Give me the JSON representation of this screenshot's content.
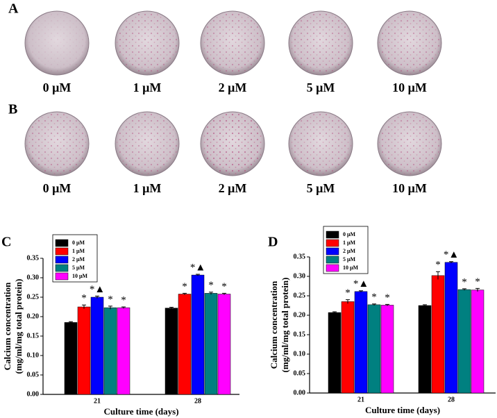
{
  "panels": [
    {
      "label": "A",
      "wells": [
        "0 μM",
        "1 μM",
        "2 μM",
        "5 μM",
        "10 μM"
      ]
    },
    {
      "label": "B",
      "wells": [
        "0 μM",
        "1 μM",
        "2 μM",
        "5 μM",
        "10 μM"
      ]
    }
  ],
  "chart_data": [
    {
      "type": "bar",
      "panel_label": "C",
      "xlabel": "Culture time (days)",
      "ylabel": [
        "Calcium concentration",
        "(mg/ml/mg total protein)"
      ],
      "categories": [
        "21",
        "28"
      ],
      "ylim": [
        0,
        0.35
      ],
      "yticks": [
        {
          "value": 0,
          "label": "0.00"
        },
        0.05,
        {
          "value": 0.1,
          "label": "0.10"
        },
        0.15,
        {
          "value": 0.2,
          "label": "0.20"
        },
        0.25,
        {
          "value": 0.3,
          "label": "0.30"
        },
        0.35
      ],
      "legend": "top-left",
      "series": [
        {
          "name": "0 μM",
          "color": "#000000",
          "values": [
            0.185,
            0.222
          ],
          "errors": [
            0.002,
            0.002
          ]
        },
        {
          "name": "1 μM",
          "color": "#ff0000",
          "values": [
            0.225,
            0.258
          ],
          "errors": [
            0.005,
            0.002
          ],
          "markers": [
            "*",
            "*"
          ]
        },
        {
          "name": "2 μM",
          "color": "#0000ff",
          "values": [
            0.25,
            0.307
          ],
          "errors": [
            0.003,
            0.002
          ],
          "markers": [
            "*▲",
            "*▲"
          ]
        },
        {
          "name": "5 μM",
          "color": "#008080",
          "values": [
            0.223,
            0.26
          ],
          "errors": [
            0.004,
            0.003
          ],
          "markers": [
            "*",
            "*"
          ]
        },
        {
          "name": "10 μM",
          "color": "#ff00ff",
          "values": [
            0.223,
            0.258
          ],
          "errors": [
            0.002,
            0.002
          ],
          "markers": [
            "*",
            "*"
          ]
        }
      ]
    },
    {
      "type": "bar",
      "panel_label": "D",
      "xlabel": "Culture time (days)",
      "ylabel": [
        "Calcium concentration",
        "(mg/ml/mg total protein)"
      ],
      "categories": [
        "21",
        "28"
      ],
      "ylim": [
        0,
        0.35
      ],
      "yticks": [
        {
          "value": 0,
          "label": "0.00"
        },
        0.05,
        {
          "value": 0.1,
          "label": "0.10"
        },
        0.15,
        {
          "value": 0.2,
          "label": "0.20"
        },
        0.25,
        {
          "value": 0.3,
          "label": "0.30"
        },
        0.35
      ],
      "legend": "top-left",
      "series": [
        {
          "name": "0 μM",
          "color": "#000000",
          "values": [
            0.207,
            0.225
          ],
          "errors": [
            0.002,
            0.002
          ]
        },
        {
          "name": "1 μM",
          "color": "#ff0000",
          "values": [
            0.235,
            0.302
          ],
          "errors": [
            0.005,
            0.01
          ],
          "markers": [
            "*",
            "*"
          ]
        },
        {
          "name": "2 μM",
          "color": "#0000ff",
          "values": [
            0.261,
            0.336
          ],
          "errors": [
            0.002,
            0.002
          ],
          "markers": [
            "*▲",
            "*▲"
          ]
        },
        {
          "name": "5 μM",
          "color": "#008080",
          "values": [
            0.227,
            0.266
          ],
          "errors": [
            0.002,
            0.002
          ],
          "markers": [
            "*",
            "*"
          ]
        },
        {
          "name": "10 μM",
          "color": "#ff00ff",
          "values": [
            0.226,
            0.265
          ],
          "errors": [
            0.002,
            0.004
          ],
          "markers": [
            "*",
            "*"
          ]
        }
      ]
    }
  ]
}
